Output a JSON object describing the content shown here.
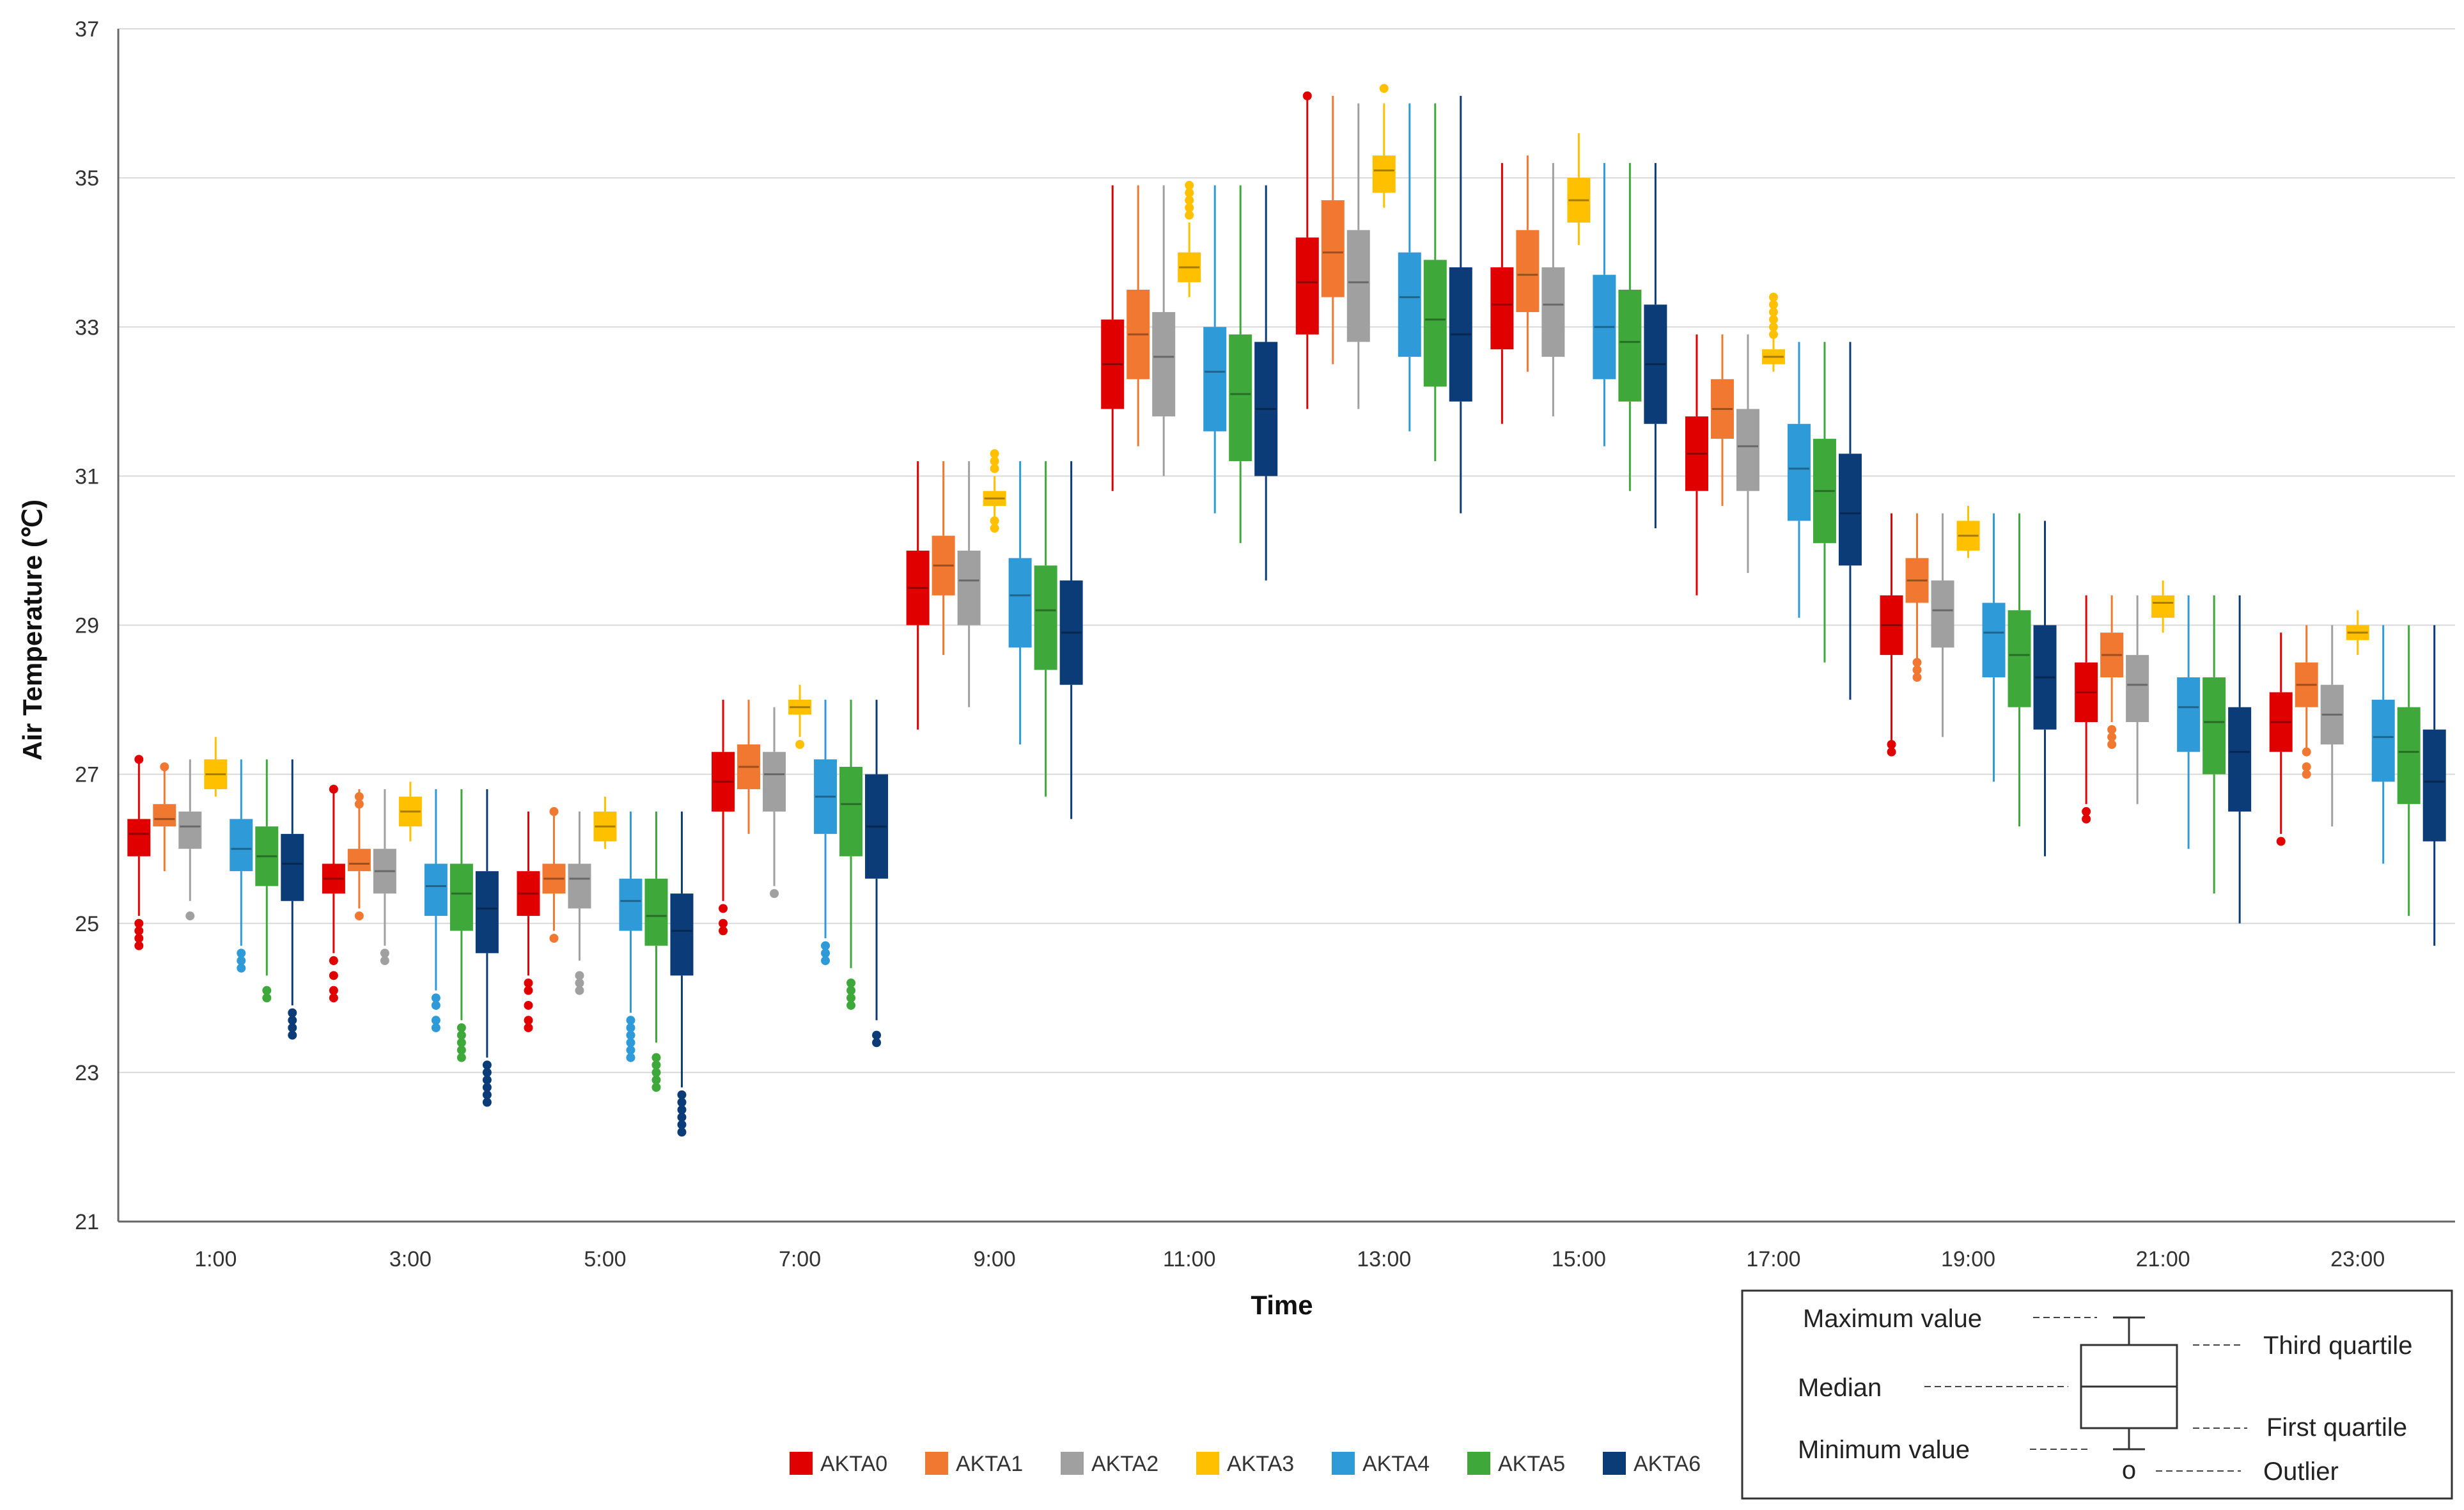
{
  "chart_data": {
    "type": "box",
    "xlabel": "Time",
    "ylabel": "Air Temperature (℃)",
    "ylim": [
      21,
      37
    ],
    "yticks": [
      "21",
      "23",
      "25",
      "27",
      "29",
      "31",
      "33",
      "35",
      "37"
    ],
    "grid": true,
    "categories": [
      "1:00",
      "3:00",
      "5:00",
      "7:00",
      "9:00",
      "11:00",
      "13:00",
      "15:00",
      "17:00",
      "19:00",
      "21:00",
      "23:00"
    ],
    "series": [
      {
        "name": "AKTA0",
        "color": "#e00000",
        "boxes": [
          {
            "min": 25.1,
            "q1": 25.9,
            "median": 26.2,
            "q3": 26.4,
            "max": 27.2,
            "outliers": [
              24.7,
              24.8,
              24.9,
              25.0,
              27.2
            ]
          },
          {
            "min": 24.6,
            "q1": 25.4,
            "median": 25.6,
            "q3": 25.8,
            "max": 26.8,
            "outliers": [
              24.0,
              24.1,
              24.3,
              24.5,
              26.8
            ]
          },
          {
            "min": 24.3,
            "q1": 25.1,
            "median": 25.4,
            "q3": 25.7,
            "max": 26.5,
            "outliers": [
              23.6,
              23.7,
              23.9,
              24.1,
              24.2
            ]
          },
          {
            "min": 25.3,
            "q1": 26.5,
            "median": 26.9,
            "q3": 27.3,
            "max": 28.0,
            "outliers": [
              24.9,
              25.0,
              25.2
            ]
          },
          {
            "min": 27.6,
            "q1": 29.0,
            "median": 29.5,
            "q3": 30.0,
            "max": 31.2,
            "outliers": []
          },
          {
            "min": 30.8,
            "q1": 31.9,
            "median": 32.5,
            "q3": 33.1,
            "max": 34.9,
            "outliers": []
          },
          {
            "min": 31.9,
            "q1": 32.9,
            "median": 33.6,
            "q3": 34.2,
            "max": 36.1,
            "outliers": [
              36.1
            ]
          },
          {
            "min": 31.7,
            "q1": 32.7,
            "median": 33.3,
            "q3": 33.8,
            "max": 35.2,
            "outliers": []
          },
          {
            "min": 29.4,
            "q1": 30.8,
            "median": 31.3,
            "q3": 31.8,
            "max": 32.9,
            "outliers": []
          },
          {
            "min": 27.4,
            "q1": 28.6,
            "median": 29.0,
            "q3": 29.4,
            "max": 30.5,
            "outliers": [
              27.3,
              27.4
            ]
          },
          {
            "min": 26.6,
            "q1": 27.7,
            "median": 28.1,
            "q3": 28.5,
            "max": 29.4,
            "outliers": [
              26.4,
              26.5
            ]
          },
          {
            "min": 26.2,
            "q1": 27.3,
            "median": 27.7,
            "q3": 28.1,
            "max": 28.9,
            "outliers": [
              26.1
            ]
          }
        ]
      },
      {
        "name": "AKTA1",
        "color": "#f07830",
        "boxes": [
          {
            "min": 25.7,
            "q1": 26.3,
            "median": 26.4,
            "q3": 26.6,
            "max": 27.1,
            "outliers": [
              27.1
            ]
          },
          {
            "min": 25.2,
            "q1": 25.7,
            "median": 25.8,
            "q3": 26.0,
            "max": 26.8,
            "outliers": [
              25.1,
              26.6,
              26.7
            ]
          },
          {
            "min": 24.9,
            "q1": 25.4,
            "median": 25.6,
            "q3": 25.8,
            "max": 26.5,
            "outliers": [
              24.8,
              26.5
            ]
          },
          {
            "min": 26.2,
            "q1": 26.8,
            "median": 27.1,
            "q3": 27.4,
            "max": 28.0,
            "outliers": []
          },
          {
            "min": 28.6,
            "q1": 29.4,
            "median": 29.8,
            "q3": 30.2,
            "max": 31.2,
            "outliers": []
          },
          {
            "min": 31.4,
            "q1": 32.3,
            "median": 32.9,
            "q3": 33.5,
            "max": 34.9,
            "outliers": []
          },
          {
            "min": 32.5,
            "q1": 33.4,
            "median": 34.0,
            "q3": 34.7,
            "max": 36.1,
            "outliers": []
          },
          {
            "min": 32.4,
            "q1": 33.2,
            "median": 33.7,
            "q3": 34.3,
            "max": 35.3,
            "outliers": []
          },
          {
            "min": 30.6,
            "q1": 31.5,
            "median": 31.9,
            "q3": 32.3,
            "max": 32.9,
            "outliers": []
          },
          {
            "min": 28.5,
            "q1": 29.3,
            "median": 29.6,
            "q3": 29.9,
            "max": 30.5,
            "outliers": [
              28.3,
              28.4,
              28.5
            ]
          },
          {
            "min": 27.7,
            "q1": 28.3,
            "median": 28.6,
            "q3": 28.9,
            "max": 29.4,
            "outliers": [
              27.4,
              27.5,
              27.6
            ]
          },
          {
            "min": 27.3,
            "q1": 27.9,
            "median": 28.2,
            "q3": 28.5,
            "max": 29.0,
            "outliers": [
              27.0,
              27.1,
              27.3
            ]
          }
        ]
      },
      {
        "name": "AKTA2",
        "color": "#a0a0a0",
        "boxes": [
          {
            "min": 25.3,
            "q1": 26.0,
            "median": 26.3,
            "q3": 26.5,
            "max": 27.2,
            "outliers": [
              25.1
            ]
          },
          {
            "min": 24.7,
            "q1": 25.4,
            "median": 25.7,
            "q3": 26.0,
            "max": 26.8,
            "outliers": [
              24.5,
              24.6
            ]
          },
          {
            "min": 24.5,
            "q1": 25.2,
            "median": 25.6,
            "q3": 25.8,
            "max": 26.5,
            "outliers": [
              24.1,
              24.2,
              24.3
            ]
          },
          {
            "min": 25.5,
            "q1": 26.5,
            "median": 27.0,
            "q3": 27.3,
            "max": 27.9,
            "outliers": [
              25.4
            ]
          },
          {
            "min": 27.9,
            "q1": 29.0,
            "median": 29.6,
            "q3": 30.0,
            "max": 31.2,
            "outliers": []
          },
          {
            "min": 31.0,
            "q1": 31.8,
            "median": 32.6,
            "q3": 33.2,
            "max": 34.9,
            "outliers": []
          },
          {
            "min": 31.9,
            "q1": 32.8,
            "median": 33.6,
            "q3": 34.3,
            "max": 36.0,
            "outliers": []
          },
          {
            "min": 31.8,
            "q1": 32.6,
            "median": 33.3,
            "q3": 33.8,
            "max": 35.2,
            "outliers": []
          },
          {
            "min": 29.7,
            "q1": 30.8,
            "median": 31.4,
            "q3": 31.9,
            "max": 32.9,
            "outliers": []
          },
          {
            "min": 27.5,
            "q1": 28.7,
            "median": 29.2,
            "q3": 29.6,
            "max": 30.5,
            "outliers": []
          },
          {
            "min": 26.6,
            "q1": 27.7,
            "median": 28.2,
            "q3": 28.6,
            "max": 29.4,
            "outliers": []
          },
          {
            "min": 26.3,
            "q1": 27.4,
            "median": 27.8,
            "q3": 28.2,
            "max": 29.0,
            "outliers": []
          }
        ]
      },
      {
        "name": "AKTA3",
        "color": "#ffc000",
        "boxes": [
          {
            "min": 26.7,
            "q1": 26.8,
            "median": 27.0,
            "q3": 27.2,
            "max": 27.5,
            "outliers": []
          },
          {
            "min": 26.1,
            "q1": 26.3,
            "median": 26.5,
            "q3": 26.7,
            "max": 26.9,
            "outliers": []
          },
          {
            "min": 26.0,
            "q1": 26.1,
            "median": 26.3,
            "q3": 26.5,
            "max": 26.7,
            "outliers": []
          },
          {
            "min": 27.5,
            "q1": 27.8,
            "median": 27.9,
            "q3": 28.0,
            "max": 28.2,
            "outliers": [
              27.4
            ]
          },
          {
            "min": 30.4,
            "q1": 30.6,
            "median": 30.7,
            "q3": 30.8,
            "max": 31.0,
            "outliers": [
              30.3,
              30.4,
              31.1,
              31.2,
              31.3
            ]
          },
          {
            "min": 33.4,
            "q1": 33.6,
            "median": 33.8,
            "q3": 34.0,
            "max": 34.4,
            "outliers": [
              34.5,
              34.6,
              34.7,
              34.8,
              34.9
            ]
          },
          {
            "min": 34.6,
            "q1": 34.8,
            "median": 35.1,
            "q3": 35.3,
            "max": 36.0,
            "outliers": [
              36.2
            ]
          },
          {
            "min": 34.1,
            "q1": 34.4,
            "median": 34.7,
            "q3": 35.0,
            "max": 35.6,
            "outliers": []
          },
          {
            "min": 32.4,
            "q1": 32.5,
            "median": 32.6,
            "q3": 32.7,
            "max": 32.9,
            "outliers": [
              32.9,
              33.0,
              33.1,
              33.2,
              33.3,
              33.4
            ]
          },
          {
            "min": 29.9,
            "q1": 30.0,
            "median": 30.2,
            "q3": 30.4,
            "max": 30.6,
            "outliers": []
          },
          {
            "min": 28.9,
            "q1": 29.1,
            "median": 29.3,
            "q3": 29.4,
            "max": 29.6,
            "outliers": []
          },
          {
            "min": 28.6,
            "q1": 28.8,
            "median": 28.9,
            "q3": 29.0,
            "max": 29.2,
            "outliers": []
          }
        ]
      },
      {
        "name": "AKTA4",
        "color": "#2f9ad8",
        "boxes": [
          {
            "min": 24.7,
            "q1": 25.7,
            "median": 26.0,
            "q3": 26.4,
            "max": 27.2,
            "outliers": [
              24.4,
              24.5,
              24.6
            ]
          },
          {
            "min": 24.1,
            "q1": 25.1,
            "median": 25.5,
            "q3": 25.8,
            "max": 26.8,
            "outliers": [
              23.6,
              23.7,
              23.9,
              24.0
            ]
          },
          {
            "min": 23.8,
            "q1": 24.9,
            "median": 25.3,
            "q3": 25.6,
            "max": 26.5,
            "outliers": [
              23.2,
              23.3,
              23.4,
              23.5,
              23.6,
              23.7
            ]
          },
          {
            "min": 24.8,
            "q1": 26.2,
            "median": 26.7,
            "q3": 27.2,
            "max": 28.0,
            "outliers": [
              24.5,
              24.6,
              24.7
            ]
          },
          {
            "min": 27.4,
            "q1": 28.7,
            "median": 29.4,
            "q3": 29.9,
            "max": 31.2,
            "outliers": []
          },
          {
            "min": 30.5,
            "q1": 31.6,
            "median": 32.4,
            "q3": 33.0,
            "max": 34.9,
            "outliers": []
          },
          {
            "min": 31.6,
            "q1": 32.6,
            "median": 33.4,
            "q3": 34.0,
            "max": 36.0,
            "outliers": []
          },
          {
            "min": 31.4,
            "q1": 32.3,
            "median": 33.0,
            "q3": 33.7,
            "max": 35.2,
            "outliers": []
          },
          {
            "min": 29.1,
            "q1": 30.4,
            "median": 31.1,
            "q3": 31.7,
            "max": 32.8,
            "outliers": []
          },
          {
            "min": 26.9,
            "q1": 28.3,
            "median": 28.9,
            "q3": 29.3,
            "max": 30.5,
            "outliers": []
          },
          {
            "min": 26.0,
            "q1": 27.3,
            "median": 27.9,
            "q3": 28.3,
            "max": 29.4,
            "outliers": []
          },
          {
            "min": 25.8,
            "q1": 26.9,
            "median": 27.5,
            "q3": 28.0,
            "max": 29.0,
            "outliers": []
          }
        ]
      },
      {
        "name": "AKTA5",
        "color": "#3ea83a",
        "boxes": [
          {
            "min": 24.3,
            "q1": 25.5,
            "median": 25.9,
            "q3": 26.3,
            "max": 27.2,
            "outliers": [
              24.0,
              24.1
            ]
          },
          {
            "min": 23.7,
            "q1": 24.9,
            "median": 25.4,
            "q3": 25.8,
            "max": 26.8,
            "outliers": [
              23.2,
              23.3,
              23.4,
              23.5,
              23.6
            ]
          },
          {
            "min": 23.4,
            "q1": 24.7,
            "median": 25.1,
            "q3": 25.6,
            "max": 26.5,
            "outliers": [
              22.8,
              22.9,
              23.0,
              23.1,
              23.2
            ]
          },
          {
            "min": 24.4,
            "q1": 25.9,
            "median": 26.6,
            "q3": 27.1,
            "max": 28.0,
            "outliers": [
              23.9,
              24.0,
              24.1,
              24.2
            ]
          },
          {
            "min": 26.7,
            "q1": 28.4,
            "median": 29.2,
            "q3": 29.8,
            "max": 31.2,
            "outliers": []
          },
          {
            "min": 30.1,
            "q1": 31.2,
            "median": 32.1,
            "q3": 32.9,
            "max": 34.9,
            "outliers": []
          },
          {
            "min": 31.2,
            "q1": 32.2,
            "median": 33.1,
            "q3": 33.9,
            "max": 36.0,
            "outliers": []
          },
          {
            "min": 30.8,
            "q1": 32.0,
            "median": 32.8,
            "q3": 33.5,
            "max": 35.2,
            "outliers": []
          },
          {
            "min": 28.5,
            "q1": 30.1,
            "median": 30.8,
            "q3": 31.5,
            "max": 32.8,
            "outliers": []
          },
          {
            "min": 26.3,
            "q1": 27.9,
            "median": 28.6,
            "q3": 29.2,
            "max": 30.5,
            "outliers": []
          },
          {
            "min": 25.4,
            "q1": 27.0,
            "median": 27.7,
            "q3": 28.3,
            "max": 29.4,
            "outliers": []
          },
          {
            "min": 25.1,
            "q1": 26.6,
            "median": 27.3,
            "q3": 27.9,
            "max": 29.0,
            "outliers": []
          }
        ]
      },
      {
        "name": "AKTA6",
        "color": "#0b3c78",
        "boxes": [
          {
            "min": 23.9,
            "q1": 25.3,
            "median": 25.8,
            "q3": 26.2,
            "max": 27.2,
            "outliers": [
              23.5,
              23.6,
              23.7,
              23.8
            ]
          },
          {
            "min": 23.2,
            "q1": 24.6,
            "median": 25.2,
            "q3": 25.7,
            "max": 26.8,
            "outliers": [
              22.6,
              22.7,
              22.8,
              22.9,
              23.0,
              23.1
            ]
          },
          {
            "min": 22.8,
            "q1": 24.3,
            "median": 24.9,
            "q3": 25.4,
            "max": 26.5,
            "outliers": [
              22.2,
              22.3,
              22.4,
              22.5,
              22.6,
              22.7
            ]
          },
          {
            "min": 23.7,
            "q1": 25.6,
            "median": 26.3,
            "q3": 27.0,
            "max": 28.0,
            "outliers": [
              23.4,
              23.5
            ]
          },
          {
            "min": 26.4,
            "q1": 28.2,
            "median": 28.9,
            "q3": 29.6,
            "max": 31.2,
            "outliers": []
          },
          {
            "min": 29.6,
            "q1": 31.0,
            "median": 31.9,
            "q3": 32.8,
            "max": 34.9,
            "outliers": []
          },
          {
            "min": 30.5,
            "q1": 32.0,
            "median": 32.9,
            "q3": 33.8,
            "max": 36.1,
            "outliers": []
          },
          {
            "min": 30.3,
            "q1": 31.7,
            "median": 32.5,
            "q3": 33.3,
            "max": 35.2,
            "outliers": []
          },
          {
            "min": 28.0,
            "q1": 29.8,
            "median": 30.5,
            "q3": 31.3,
            "max": 32.8,
            "outliers": []
          },
          {
            "min": 25.9,
            "q1": 27.6,
            "median": 28.3,
            "q3": 29.0,
            "max": 30.4,
            "outliers": []
          },
          {
            "min": 25.0,
            "q1": 26.5,
            "median": 27.3,
            "q3": 27.9,
            "max": 29.4,
            "outliers": []
          },
          {
            "min": 24.7,
            "q1": 26.1,
            "median": 26.9,
            "q3": 27.6,
            "max": 29.0,
            "outliers": []
          }
        ]
      }
    ],
    "key": {
      "max_label": "Maximum value",
      "q3_label": "Third quartile",
      "median_label": "Median",
      "q1_label": "First quartile",
      "min_label": "Minimum value",
      "outlier_label": "Outlier",
      "outlier_symbol": "o"
    }
  }
}
